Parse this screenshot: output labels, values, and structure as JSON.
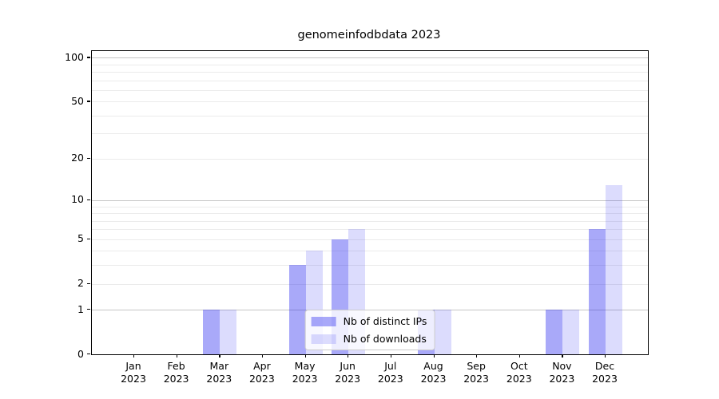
{
  "title": "genomeinfodbdata 2023",
  "chart_data": {
    "type": "bar",
    "title": "genomeinfodbdata 2023",
    "categories": [
      "Jan",
      "Feb",
      "Mar",
      "Apr",
      "May",
      "Jun",
      "Jul",
      "Aug",
      "Sep",
      "Oct",
      "Nov",
      "Dec"
    ],
    "year": "2023",
    "series": [
      {
        "name": "Nb of distinct IPs",
        "values": [
          0,
          0,
          1,
          0,
          3,
          5,
          0,
          1,
          0,
          0,
          1,
          6
        ]
      },
      {
        "name": "Nb of downloads",
        "values": [
          0,
          0,
          1,
          0,
          4,
          6,
          0,
          1,
          0,
          0,
          1,
          13
        ]
      }
    ],
    "xlabel": "",
    "ylabel": "",
    "yscale": "log1p",
    "ylim": [
      0,
      111
    ],
    "yticks": [
      0,
      1,
      2,
      5,
      10,
      20,
      50,
      100
    ],
    "grid_major": [
      1,
      10,
      100
    ],
    "grid_minor": [
      2,
      3,
      4,
      5,
      6,
      7,
      8,
      9,
      20,
      30,
      40,
      50,
      60,
      70,
      80,
      90
    ],
    "grid": "on",
    "legend_position": "lower center"
  },
  "legend": {
    "items": [
      {
        "label": "Nb of distinct IPs"
      },
      {
        "label": "Nb of downloads"
      }
    ]
  },
  "colors": {
    "ips_bar": "rgba(40,40,240,0.40)",
    "downloads_bar": "rgba(40,40,240,0.165)",
    "grid_major": "#c6c6c6",
    "grid_minor": "#ebebeb",
    "spine": "#000000"
  }
}
